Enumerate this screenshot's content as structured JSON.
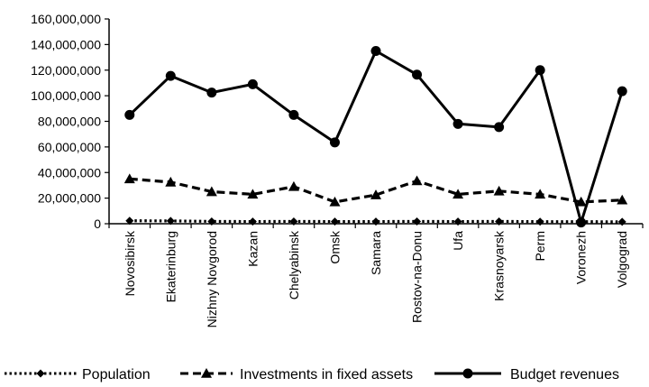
{
  "chart_data": {
    "type": "line",
    "title": "",
    "xlabel": "",
    "ylabel": "",
    "categories": [
      "Novosibirsk",
      "Ekaterinburg",
      "Nizhny Novgorod",
      "Kazan",
      "Chelyabinsk",
      "Omsk",
      "Samara",
      "Rostov-na-Donu",
      "Ufa",
      "Krasnoyarsk",
      "Perm",
      "Voronezh",
      "Volgograd"
    ],
    "y_ticks": [
      "0",
      "20,000,000",
      "40,000,000",
      "60,000,000",
      "80,000,000",
      "100,000,000",
      "120,000,000",
      "140,000,000",
      "160,000,000"
    ],
    "ylim": [
      0,
      160000000
    ],
    "grid": false,
    "legend_position": "bottom",
    "series": [
      {
        "name": "Population",
        "style": "dotted",
        "marker": "diamond",
        "values": [
          2300000,
          2200000,
          1800000,
          1700000,
          1800000,
          1700000,
          1700000,
          1800000,
          1700000,
          1800000,
          1600000,
          1600000,
          1500000
        ]
      },
      {
        "name": "Investments in fixed assets",
        "style": "dashed",
        "marker": "triangle",
        "values": [
          35000000,
          32500000,
          25000000,
          23000000,
          29000000,
          17000000,
          22500000,
          33500000,
          23000000,
          25500000,
          23000000,
          17000000,
          18500000
        ]
      },
      {
        "name": "Budget revenues",
        "style": "solid",
        "marker": "circle",
        "values": [
          85000000,
          115500000,
          102500000,
          109000000,
          85000000,
          63500000,
          135000000,
          116500000,
          78000000,
          75500000,
          120000000,
          1000000,
          103500000
        ]
      }
    ]
  }
}
